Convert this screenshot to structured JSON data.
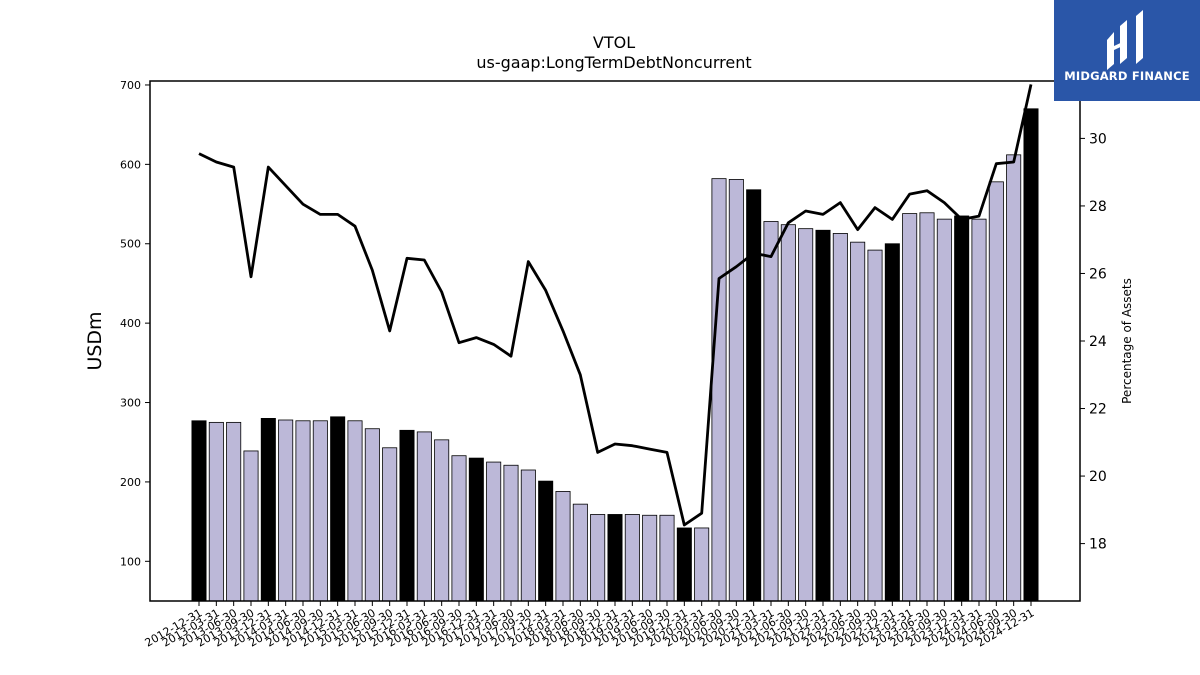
{
  "brand": {
    "name": "MIDGARD FINANCE",
    "color": "#2a56a8"
  },
  "colors": {
    "bar_regular": "#bcb8d8",
    "bar_highlight": "#000000",
    "line": "#000000"
  },
  "chart_data": {
    "type": "bar",
    "title": "VTOL",
    "subtitle": "us-gaap:LongTermDebtNoncurrent",
    "ylabel": "USDm",
    "y2label": "Percentage of Assets",
    "ylim": [
      50,
      705
    ],
    "y2lim": [
      16.3,
      31.7
    ],
    "yticks": [
      100,
      200,
      300,
      400,
      500,
      600,
      700
    ],
    "y2ticks": [
      18,
      20,
      22,
      24,
      26,
      28,
      30
    ],
    "categories": [
      "2012-12-31",
      "2013-03-31",
      "2013-06-30",
      "2013-09-30",
      "2013-12-31",
      "2014-03-31",
      "2014-06-30",
      "2014-09-30",
      "2014-12-31",
      "2015-03-31",
      "2015-06-30",
      "2015-09-30",
      "2015-12-31",
      "2016-03-31",
      "2016-06-30",
      "2016-09-30",
      "2016-12-31",
      "2017-03-31",
      "2017-06-30",
      "2017-09-30",
      "2017-12-31",
      "2018-03-31",
      "2018-06-30",
      "2018-09-30",
      "2018-12-31",
      "2019-03-31",
      "2019-06-30",
      "2019-09-30",
      "2019-12-31",
      "2020-03-31",
      "2020-06-30",
      "2020-09-30",
      "2020-12-31",
      "2021-03-31",
      "2021-06-30",
      "2021-09-30",
      "2021-12-31",
      "2022-03-31",
      "2022-06-30",
      "2022-09-30",
      "2022-12-31",
      "2023-03-31",
      "2023-06-30",
      "2023-09-30",
      "2023-12-31",
      "2024-03-31",
      "2024-06-30",
      "2024-09-30",
      "2024-12-31"
    ],
    "series": [
      {
        "type": "bar",
        "values": [
          277,
          275,
          275,
          239,
          280,
          278,
          277,
          277,
          282,
          277,
          267,
          243,
          265,
          263,
          253,
          233,
          230,
          225,
          221,
          215,
          201,
          188,
          172,
          159,
          159,
          159,
          158,
          158,
          142,
          142,
          582,
          581,
          568,
          528,
          524,
          519,
          517,
          513,
          502,
          492,
          500,
          538,
          539,
          531,
          535,
          531,
          578,
          612,
          670
        ],
        "highlight": [
          true,
          false,
          false,
          false,
          true,
          false,
          false,
          false,
          true,
          false,
          false,
          false,
          true,
          false,
          false,
          false,
          true,
          false,
          false,
          false,
          true,
          false,
          false,
          false,
          true,
          false,
          false,
          false,
          true,
          false,
          false,
          false,
          true,
          false,
          false,
          false,
          true,
          false,
          false,
          false,
          true,
          false,
          false,
          false,
          true,
          false,
          false,
          false,
          true
        ]
      },
      {
        "type": "line",
        "axis": "right",
        "values": [
          29.55,
          29.3,
          29.15,
          25.9,
          29.15,
          28.6,
          28.05,
          27.75,
          27.75,
          27.4,
          26.1,
          24.3,
          26.45,
          26.4,
          25.45,
          23.95,
          24.1,
          23.9,
          23.55,
          26.35,
          25.5,
          24.3,
          23.0,
          20.7,
          20.95,
          20.9,
          20.8,
          20.7,
          18.55,
          18.9,
          25.85,
          26.2,
          26.6,
          26.5,
          27.5,
          27.85,
          27.75,
          28.1,
          27.3,
          27.95,
          27.6,
          28.35,
          28.45,
          28.1,
          27.6,
          27.7,
          29.25,
          29.3,
          31.6
        ]
      }
    ]
  }
}
